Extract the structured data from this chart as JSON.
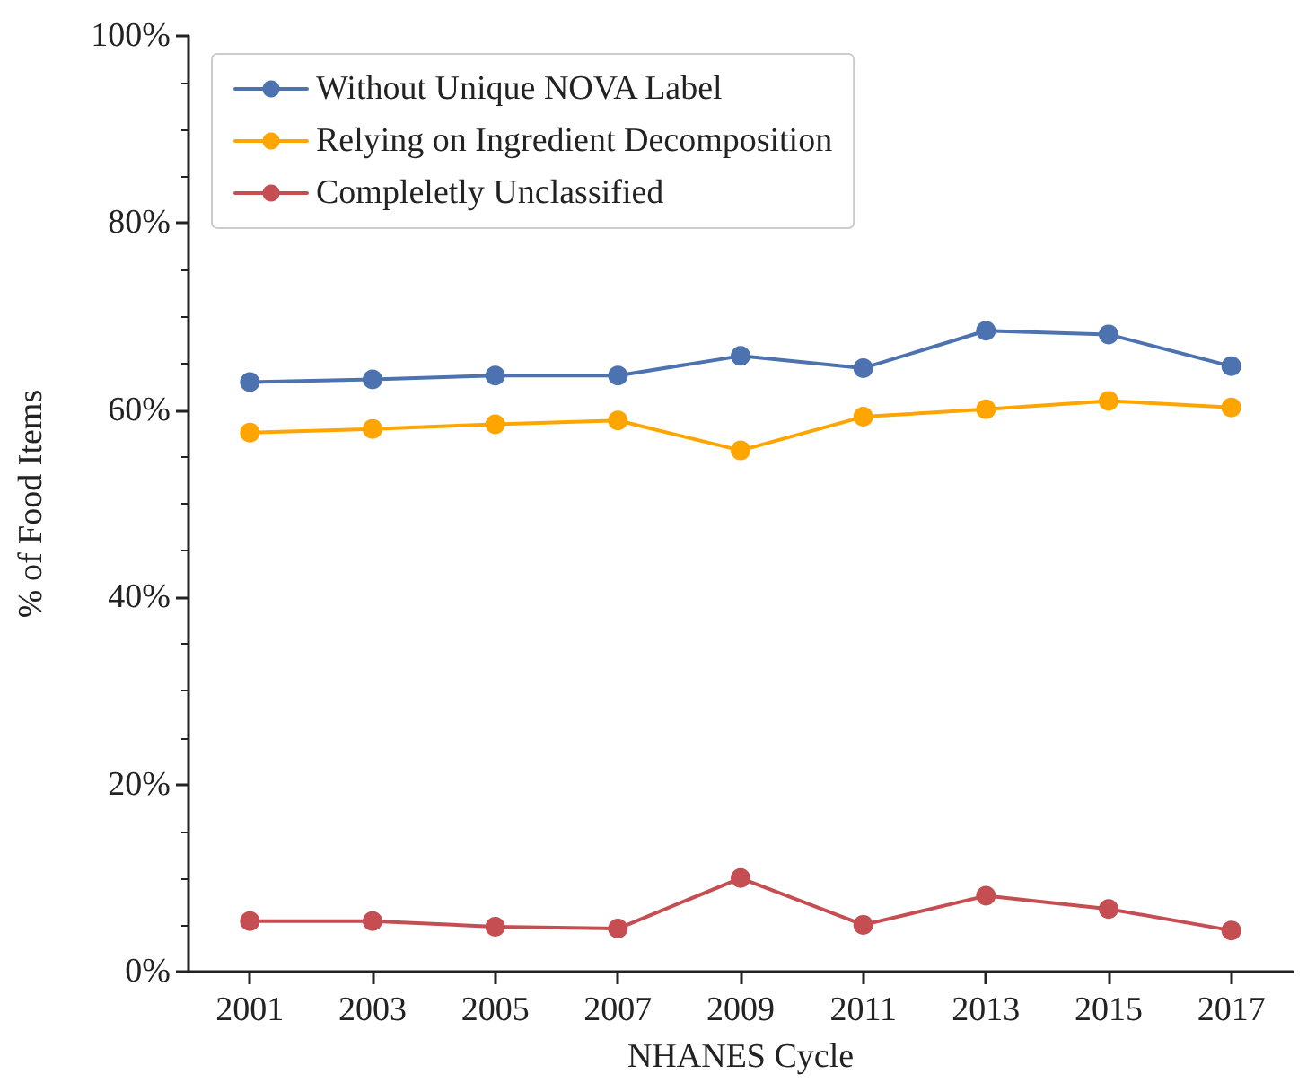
{
  "chart_data": {
    "type": "line",
    "xlabel": "NHANES Cycle",
    "ylabel": "% of Food Items",
    "categories": [
      "2001",
      "2003",
      "2005",
      "2007",
      "2009",
      "2011",
      "2013",
      "2015",
      "2017"
    ],
    "series": [
      {
        "name": "Without Unique NOVA Label",
        "color": "#4c72b0",
        "values": [
          63.0,
          63.3,
          63.7,
          63.7,
          65.8,
          64.5,
          68.5,
          68.1,
          64.7
        ]
      },
      {
        "name": "Relying on Ingredient Decomposition",
        "color": "#ffa500",
        "values": [
          57.6,
          58.0,
          58.5,
          58.9,
          55.7,
          59.3,
          60.1,
          61.0,
          60.3
        ]
      },
      {
        "name": "Compleletly Unclassified",
        "color": "#c44e52",
        "values": [
          5.4,
          5.4,
          4.8,
          4.6,
          10.0,
          5.0,
          8.1,
          6.7,
          4.4
        ]
      }
    ],
    "ylim": [
      0,
      100
    ],
    "yticks": [
      {
        "value": 0,
        "label": "0%"
      },
      {
        "value": 20,
        "label": "20%"
      },
      {
        "value": 40,
        "label": "40%"
      },
      {
        "value": 60,
        "label": "60%"
      },
      {
        "value": 80,
        "label": "80%"
      },
      {
        "value": 100,
        "label": "100%"
      }
    ],
    "legend": "top left",
    "marker": "circle",
    "line_style": "solid",
    "grid": false
  }
}
